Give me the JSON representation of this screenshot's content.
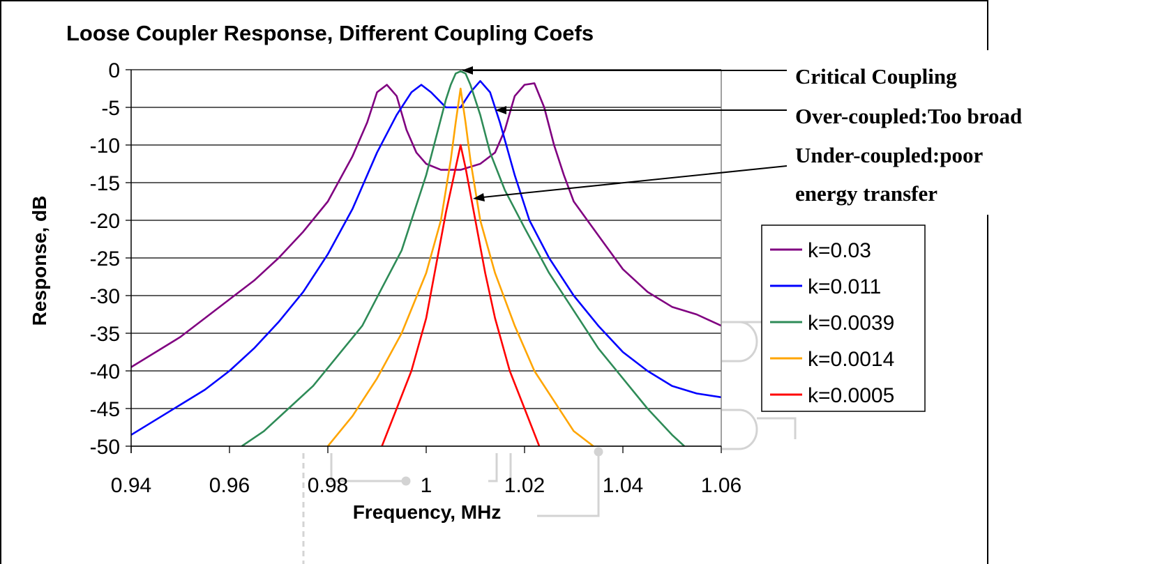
{
  "chart_data": {
    "type": "line",
    "title": "Loose Coupler Response, Different Coupling Coefs",
    "xlabel": "Frequency, MHz",
    "ylabel": "Response, dB",
    "xlim": [
      0.94,
      1.06
    ],
    "ylim": [
      -50,
      0
    ],
    "xticks": [
      "0.94",
      "0.96",
      "0.98",
      "1",
      "1.02",
      "1.04",
      "1.06"
    ],
    "yticks": [
      "0",
      "-5",
      "-10",
      "-15",
      "-20",
      "-25",
      "-30",
      "-35",
      "-40",
      "-45",
      "-50"
    ],
    "grid": "horizontal",
    "legend_position": "right",
    "series": [
      {
        "name": "k=0.03",
        "color": "#800080",
        "x": [
          0.94,
          0.945,
          0.95,
          0.955,
          0.96,
          0.965,
          0.97,
          0.975,
          0.98,
          0.985,
          0.988,
          0.99,
          0.992,
          0.994,
          0.996,
          0.998,
          1.0,
          1.003,
          1.007,
          1.011,
          1.014,
          1.016,
          1.018,
          1.02,
          1.022,
          1.024,
          1.026,
          1.028,
          1.03,
          1.035,
          1.04,
          1.045,
          1.05,
          1.055,
          1.06
        ],
        "y": [
          -39.5,
          -37.5,
          -35.5,
          -33,
          -30.5,
          -28,
          -25,
          -21.5,
          -17.5,
          -11.5,
          -7,
          -3,
          -2,
          -3.5,
          -8,
          -11,
          -12.5,
          -13.3,
          -13.3,
          -12.5,
          -11,
          -8,
          -3.5,
          -2,
          -1.8,
          -5,
          -10,
          -14,
          -17.5,
          -22,
          -26.5,
          -29.5,
          -31.5,
          -32.5,
          -34
        ]
      },
      {
        "name": "k=0.011",
        "color": "#0000FF",
        "x": [
          0.94,
          0.945,
          0.95,
          0.955,
          0.96,
          0.965,
          0.97,
          0.975,
          0.98,
          0.985,
          0.99,
          0.994,
          0.997,
          0.999,
          1.001,
          1.004,
          1.007,
          1.009,
          1.011,
          1.013,
          1.015,
          1.018,
          1.021,
          1.025,
          1.03,
          1.035,
          1.04,
          1.045,
          1.05,
          1.055,
          1.06
        ],
        "y": [
          -48.5,
          -46.5,
          -44.5,
          -42.5,
          -40,
          -37,
          -33.5,
          -29.5,
          -24.5,
          -18.5,
          -11,
          -6,
          -3,
          -2,
          -3,
          -5,
          -5,
          -3,
          -1.5,
          -3,
          -7,
          -14,
          -20,
          -25,
          -30,
          -34,
          -37.5,
          -40,
          -42,
          -43,
          -43.5
        ]
      },
      {
        "name": "k=0.0039",
        "color": "#2E8B57",
        "x": [
          0.9625,
          0.967,
          0.972,
          0.977,
          0.982,
          0.987,
          0.991,
          0.995,
          0.998,
          1.0,
          1.002,
          1.004,
          1.005,
          1.006,
          1.007,
          1.008,
          1.009,
          1.011,
          1.013,
          1.016,
          1.02,
          1.025,
          1.03,
          1.035,
          1.04,
          1.045,
          1.05,
          1.0525
        ],
        "y": [
          -50,
          -48,
          -45,
          -42,
          -38,
          -34,
          -29,
          -24,
          -18,
          -14,
          -9,
          -4,
          -2,
          -0.5,
          -0.2,
          -0.5,
          -2,
          -6,
          -11,
          -16,
          -21,
          -27,
          -32,
          -37,
          -41,
          -45,
          -48.5,
          -50
        ]
      },
      {
        "name": "k=0.0014",
        "color": "#FFA500",
        "x": [
          0.98,
          0.985,
          0.99,
          0.995,
          1.0,
          1.003,
          1.005,
          1.006,
          1.007,
          1.008,
          1.009,
          1.011,
          1.014,
          1.018,
          1.022,
          1.026,
          1.03,
          1.034
        ],
        "y": [
          -50,
          -46,
          -41,
          -35,
          -27,
          -20,
          -12,
          -7,
          -2.5,
          -7,
          -12,
          -20,
          -27,
          -34,
          -40,
          -44,
          -48,
          -50
        ]
      },
      {
        "name": "k=0.0005",
        "color": "#FF0000",
        "x": [
          0.991,
          0.994,
          0.997,
          1.0,
          1.002,
          1.004,
          1.006,
          1.007,
          1.008,
          1.01,
          1.012,
          1.014,
          1.017,
          1.02,
          1.023
        ],
        "y": [
          -50,
          -45,
          -40,
          -33,
          -26,
          -19,
          -13,
          -10,
          -13,
          -20,
          -27,
          -33,
          -40,
          -45,
          -50
        ]
      }
    ],
    "annotations": [
      {
        "text": "Critical Coupling",
        "points_to": {
          "x": 1.007,
          "y": 0
        }
      },
      {
        "text": "Over-coupled:Too broad",
        "points_to": {
          "x": 1.0135,
          "y": -5
        }
      },
      {
        "text": "Under-coupled:poor energy transfer",
        "points_to": {
          "x": 1.009,
          "y": -16.5
        }
      }
    ]
  }
}
